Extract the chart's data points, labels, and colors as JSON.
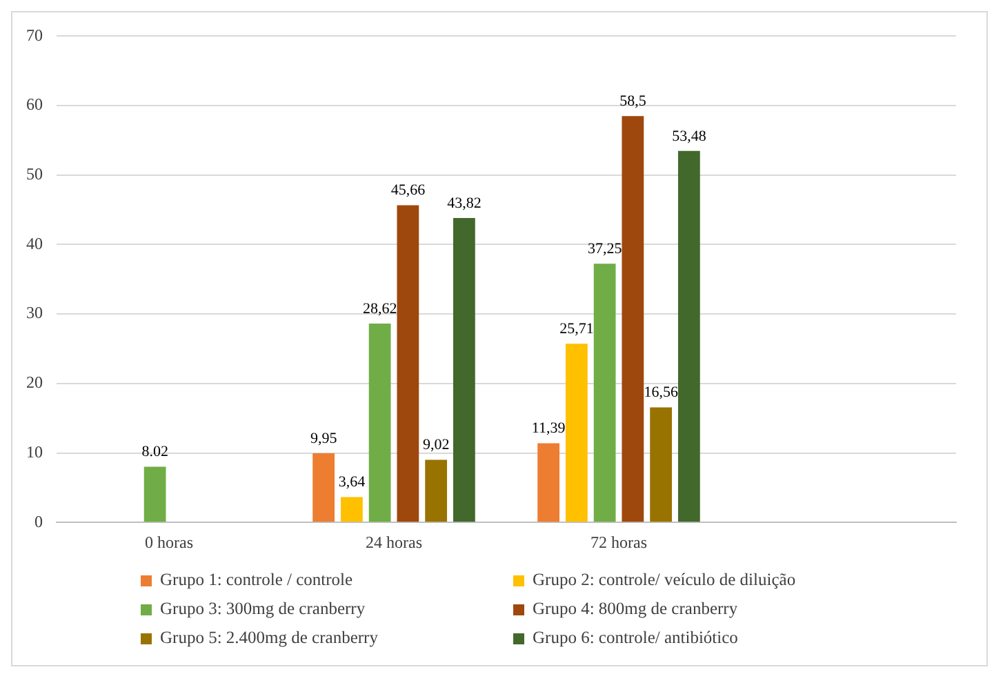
{
  "chart_data": {
    "type": "bar",
    "categories": [
      "0 horas",
      "24 horas",
      "72 horas",
      null
    ],
    "series": [
      {
        "name": "Grupo 1: controle / controle",
        "color": "#ed7d31",
        "values": [
          null,
          9.95,
          11.39,
          null
        ],
        "value_labels": [
          null,
          "9,95",
          "11,39",
          null
        ]
      },
      {
        "name": "Grupo 2: controle/ veículo de diluição",
        "color": "#ffc000",
        "values": [
          null,
          3.64,
          25.71,
          null
        ],
        "value_labels": [
          null,
          "3,64",
          "25,71",
          null
        ]
      },
      {
        "name": "Grupo 3: 300mg de cranberry",
        "color": "#70ad47",
        "values": [
          8.02,
          28.62,
          37.25,
          null
        ],
        "value_labels": [
          "8.02",
          "28,62",
          "37,25",
          null
        ]
      },
      {
        "name": "Grupo 4: 800mg de cranberry",
        "color": "#9e480e",
        "values": [
          null,
          45.66,
          58.5,
          null
        ],
        "value_labels": [
          null,
          "45,66",
          "58,5",
          null
        ]
      },
      {
        "name": "Grupo 5: 2.400mg de cranberry",
        "color": "#997300",
        "values": [
          null,
          9.02,
          16.56,
          null
        ],
        "value_labels": [
          null,
          "9,02",
          "16,56",
          null
        ]
      },
      {
        "name": "Grupo 6: controle/ antibiótico",
        "color": "#43682b",
        "values": [
          null,
          43.82,
          53.48,
          null
        ],
        "value_labels": [
          null,
          "43,82",
          "53,48",
          null
        ]
      }
    ],
    "ylim": [
      0,
      70
    ],
    "yticks": [
      0,
      10,
      20,
      30,
      40,
      50,
      60,
      70
    ],
    "grid": "y",
    "legend": "bottom"
  }
}
